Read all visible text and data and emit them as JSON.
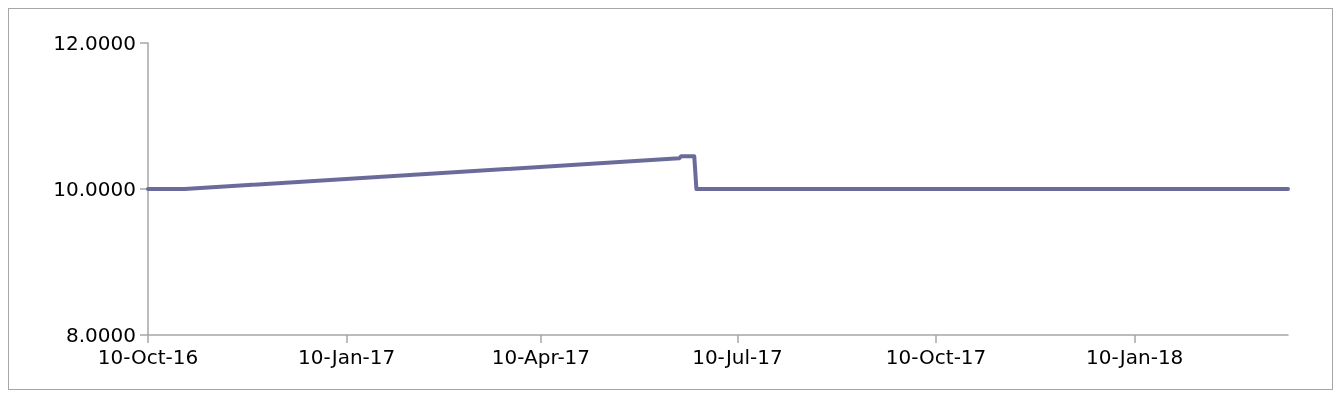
{
  "chart_data": {
    "type": "line",
    "x": [
      "2016-10-10",
      "2016-10-27",
      "2017-06-13",
      "2017-06-14",
      "2017-06-20",
      "2017-06-21",
      "2018-03-22"
    ],
    "series": [
      {
        "color": "#6b6b9b",
        "values": [
          10.0,
          10.0,
          10.42,
          10.45,
          10.45,
          10.0,
          10.0
        ]
      }
    ],
    "xlim": [
      "2016-10-10",
      "2018-03-22"
    ],
    "xticks": [
      {
        "value": "2016-10-10",
        "label": "10-Oct-16"
      },
      {
        "value": "2017-01-10",
        "label": "10-Jan-17"
      },
      {
        "value": "2017-04-10",
        "label": "10-Apr-17"
      },
      {
        "value": "2017-07-10",
        "label": "10-Jul-17"
      },
      {
        "value": "2017-10-10",
        "label": "10-Oct-17"
      },
      {
        "value": "2018-01-10",
        "label": "10-Jan-18"
      }
    ],
    "ylim": [
      8,
      12
    ],
    "yticks": [
      {
        "value": 8,
        "label": "8.0000"
      },
      {
        "value": 10,
        "label": "10.0000"
      },
      {
        "value": 12,
        "label": "12.0000"
      }
    ],
    "grid": false,
    "marker": "none",
    "line_style": "solid"
  }
}
